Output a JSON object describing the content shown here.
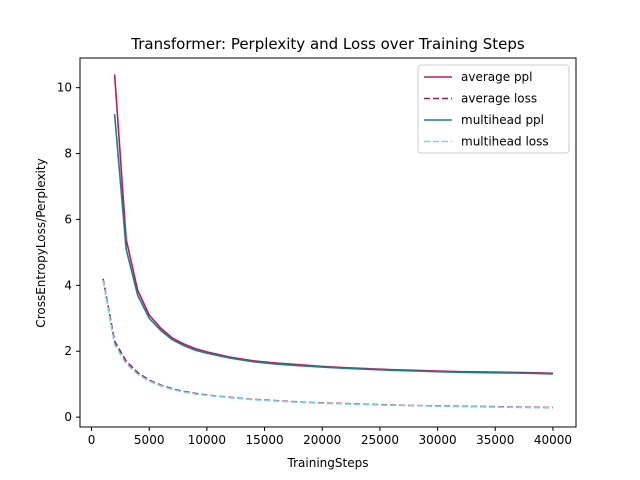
{
  "chart_data": {
    "type": "line",
    "title": "Transformer: Perplexity and Loss over Training Steps",
    "xlabel": "TrainingSteps",
    "ylabel": "CrossEntropyLoss/Perplexity",
    "xlim": [
      -1000,
      42000
    ],
    "ylim": [
      -0.3,
      10.9
    ],
    "xticks": [
      0,
      5000,
      10000,
      15000,
      20000,
      25000,
      30000,
      35000,
      40000
    ],
    "yticks": [
      0,
      2,
      4,
      6,
      8,
      10
    ],
    "grid": false,
    "legend_position": "top-right",
    "series": [
      {
        "name": "average ppl",
        "color": "#c2185b",
        "style": "solid",
        "x": [
          2000,
          3000,
          4000,
          5000,
          6000,
          7000,
          8000,
          9000,
          10000,
          12000,
          14000,
          16000,
          18000,
          20000,
          22000,
          24000,
          26000,
          28000,
          30000,
          32000,
          34000,
          36000,
          38000,
          40000
        ],
        "y": [
          10.4,
          5.4,
          3.85,
          3.1,
          2.7,
          2.4,
          2.22,
          2.08,
          1.98,
          1.82,
          1.71,
          1.64,
          1.59,
          1.54,
          1.5,
          1.47,
          1.44,
          1.42,
          1.4,
          1.38,
          1.37,
          1.36,
          1.35,
          1.33
        ]
      },
      {
        "name": "average loss",
        "color": "#9c1c4d",
        "style": "dashed",
        "x": [
          1000,
          2000,
          3000,
          4000,
          5000,
          6000,
          7000,
          8000,
          9000,
          10000,
          12000,
          14000,
          16000,
          18000,
          20000,
          22000,
          24000,
          26000,
          28000,
          30000,
          32000,
          34000,
          36000,
          38000,
          40000
        ],
        "y": [
          4.2,
          2.3,
          1.7,
          1.35,
          1.12,
          0.97,
          0.86,
          0.78,
          0.72,
          0.67,
          0.6,
          0.54,
          0.5,
          0.46,
          0.43,
          0.41,
          0.39,
          0.37,
          0.35,
          0.34,
          0.33,
          0.32,
          0.31,
          0.3,
          0.29
        ]
      },
      {
        "name": "multihead ppl",
        "color": "#1b7f86",
        "style": "solid",
        "x": [
          2000,
          3000,
          4000,
          5000,
          6000,
          7000,
          8000,
          9000,
          10000,
          12000,
          14000,
          16000,
          18000,
          20000,
          22000,
          24000,
          26000,
          28000,
          30000,
          32000,
          34000,
          36000,
          38000,
          40000
        ],
        "y": [
          9.2,
          5.1,
          3.7,
          3.0,
          2.63,
          2.35,
          2.17,
          2.03,
          1.94,
          1.79,
          1.68,
          1.61,
          1.56,
          1.52,
          1.48,
          1.45,
          1.42,
          1.4,
          1.38,
          1.36,
          1.35,
          1.34,
          1.33,
          1.31
        ]
      },
      {
        "name": "multihead loss",
        "color": "#7fd0e0",
        "style": "dashed",
        "x": [
          1000,
          2000,
          3000,
          4000,
          5000,
          6000,
          7000,
          8000,
          9000,
          10000,
          12000,
          14000,
          16000,
          18000,
          20000,
          22000,
          24000,
          26000,
          28000,
          30000,
          32000,
          34000,
          36000,
          38000,
          40000
        ],
        "y": [
          4.15,
          2.2,
          1.62,
          1.3,
          1.09,
          0.95,
          0.84,
          0.76,
          0.7,
          0.66,
          0.59,
          0.53,
          0.49,
          0.45,
          0.42,
          0.4,
          0.38,
          0.36,
          0.35,
          0.33,
          0.32,
          0.31,
          0.3,
          0.29,
          0.28
        ]
      }
    ]
  }
}
